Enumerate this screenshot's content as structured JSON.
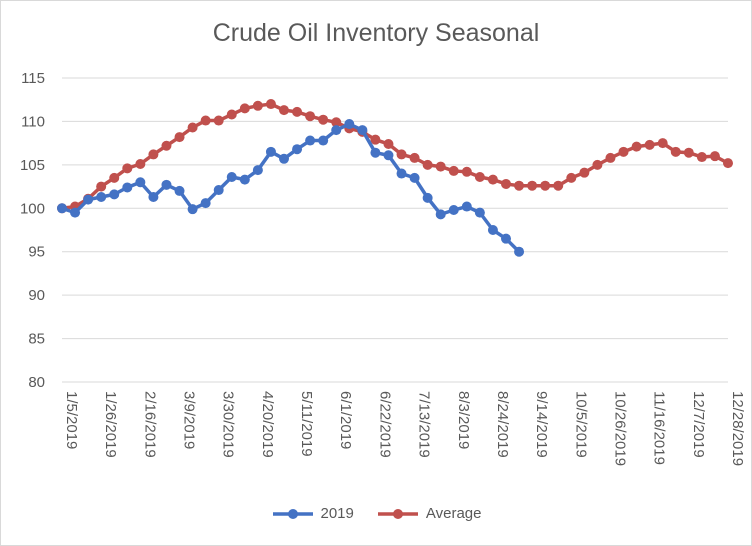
{
  "chart_data": {
    "type": "line",
    "title": "Crude Oil Inventory Seasonal",
    "xlabel": "",
    "ylabel": "",
    "ylim": [
      80,
      115
    ],
    "y_ticks": [
      80,
      85,
      90,
      95,
      100,
      105,
      110,
      115
    ],
    "x_tick_labels": [
      "1/5/2019",
      "1/26/2019",
      "2/16/2019",
      "3/9/2019",
      "3/30/2019",
      "4/20/2019",
      "5/11/2019",
      "6/1/2019",
      "6/22/2019",
      "7/13/2019",
      "8/3/2019",
      "8/24/2019",
      "9/14/2019",
      "10/5/2019",
      "10/26/2019",
      "11/16/2019",
      "12/7/2019",
      "12/28/2019"
    ],
    "x_start": "1/5/2019",
    "grid": true,
    "legend_position": "bottom",
    "series": [
      {
        "name": "2019",
        "color": "#4472c4",
        "values": [
          100.0,
          99.5,
          101.0,
          101.3,
          101.6,
          102.4,
          103.0,
          101.3,
          102.7,
          102.0,
          99.9,
          100.6,
          102.1,
          103.6,
          103.3,
          104.4,
          106.5,
          105.7,
          106.8,
          107.8,
          107.8,
          109.0,
          109.7,
          109.0,
          106.4,
          106.1,
          104.0,
          103.5,
          101.2,
          99.3,
          99.8,
          100.2,
          99.5,
          97.5,
          96.5,
          95.0
        ]
      },
      {
        "name": "Average",
        "color": "#c0504d",
        "values": [
          100.0,
          100.2,
          101.1,
          102.5,
          103.5,
          104.6,
          105.1,
          106.2,
          107.2,
          108.2,
          109.3,
          110.1,
          110.1,
          110.8,
          111.5,
          111.8,
          112.0,
          111.3,
          111.1,
          110.6,
          110.2,
          109.9,
          109.2,
          108.8,
          107.9,
          107.4,
          106.2,
          105.8,
          105.0,
          104.8,
          104.3,
          104.2,
          103.6,
          103.3,
          102.8,
          102.6,
          102.6,
          102.6,
          102.6,
          103.5,
          104.1,
          105.0,
          105.8,
          106.5,
          107.1,
          107.3,
          107.5,
          106.5,
          106.4,
          105.9,
          106.0,
          105.2
        ]
      }
    ]
  }
}
